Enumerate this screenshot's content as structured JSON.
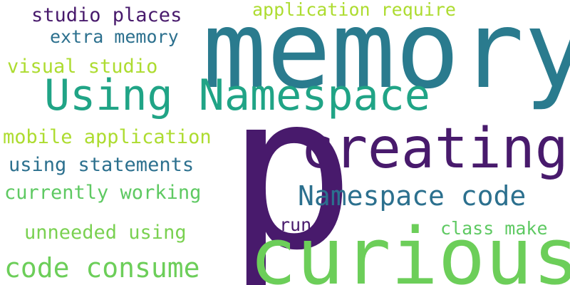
{
  "words": [
    {
      "text": "p",
      "color": "#481a6c"
    },
    {
      "text": "memory",
      "color": "#2a7b8e"
    },
    {
      "text": "curious",
      "color": "#6cce59"
    },
    {
      "text": "creating",
      "color": "#481a6c"
    },
    {
      "text": "Using Namespace",
      "color": "#20a486"
    },
    {
      "text": "Namespace code",
      "color": "#2c708e"
    },
    {
      "text": "code consume",
      "color": "#6cce59"
    },
    {
      "text": "studio places",
      "color": "#481a6c"
    },
    {
      "text": "application require",
      "color": "#addc30"
    },
    {
      "text": "extra memory",
      "color": "#2c708e"
    },
    {
      "text": "visual studio",
      "color": "#addc30"
    },
    {
      "text": "mobile application",
      "color": "#addc30"
    },
    {
      "text": "using statements",
      "color": "#2c708e"
    },
    {
      "text": "currently working",
      "color": "#5ec962"
    },
    {
      "text": "unneeded using",
      "color": "#7ad151"
    },
    {
      "text": "run p",
      "color": "#481a6c"
    },
    {
      "text": "class make",
      "color": "#5ec962"
    }
  ]
}
